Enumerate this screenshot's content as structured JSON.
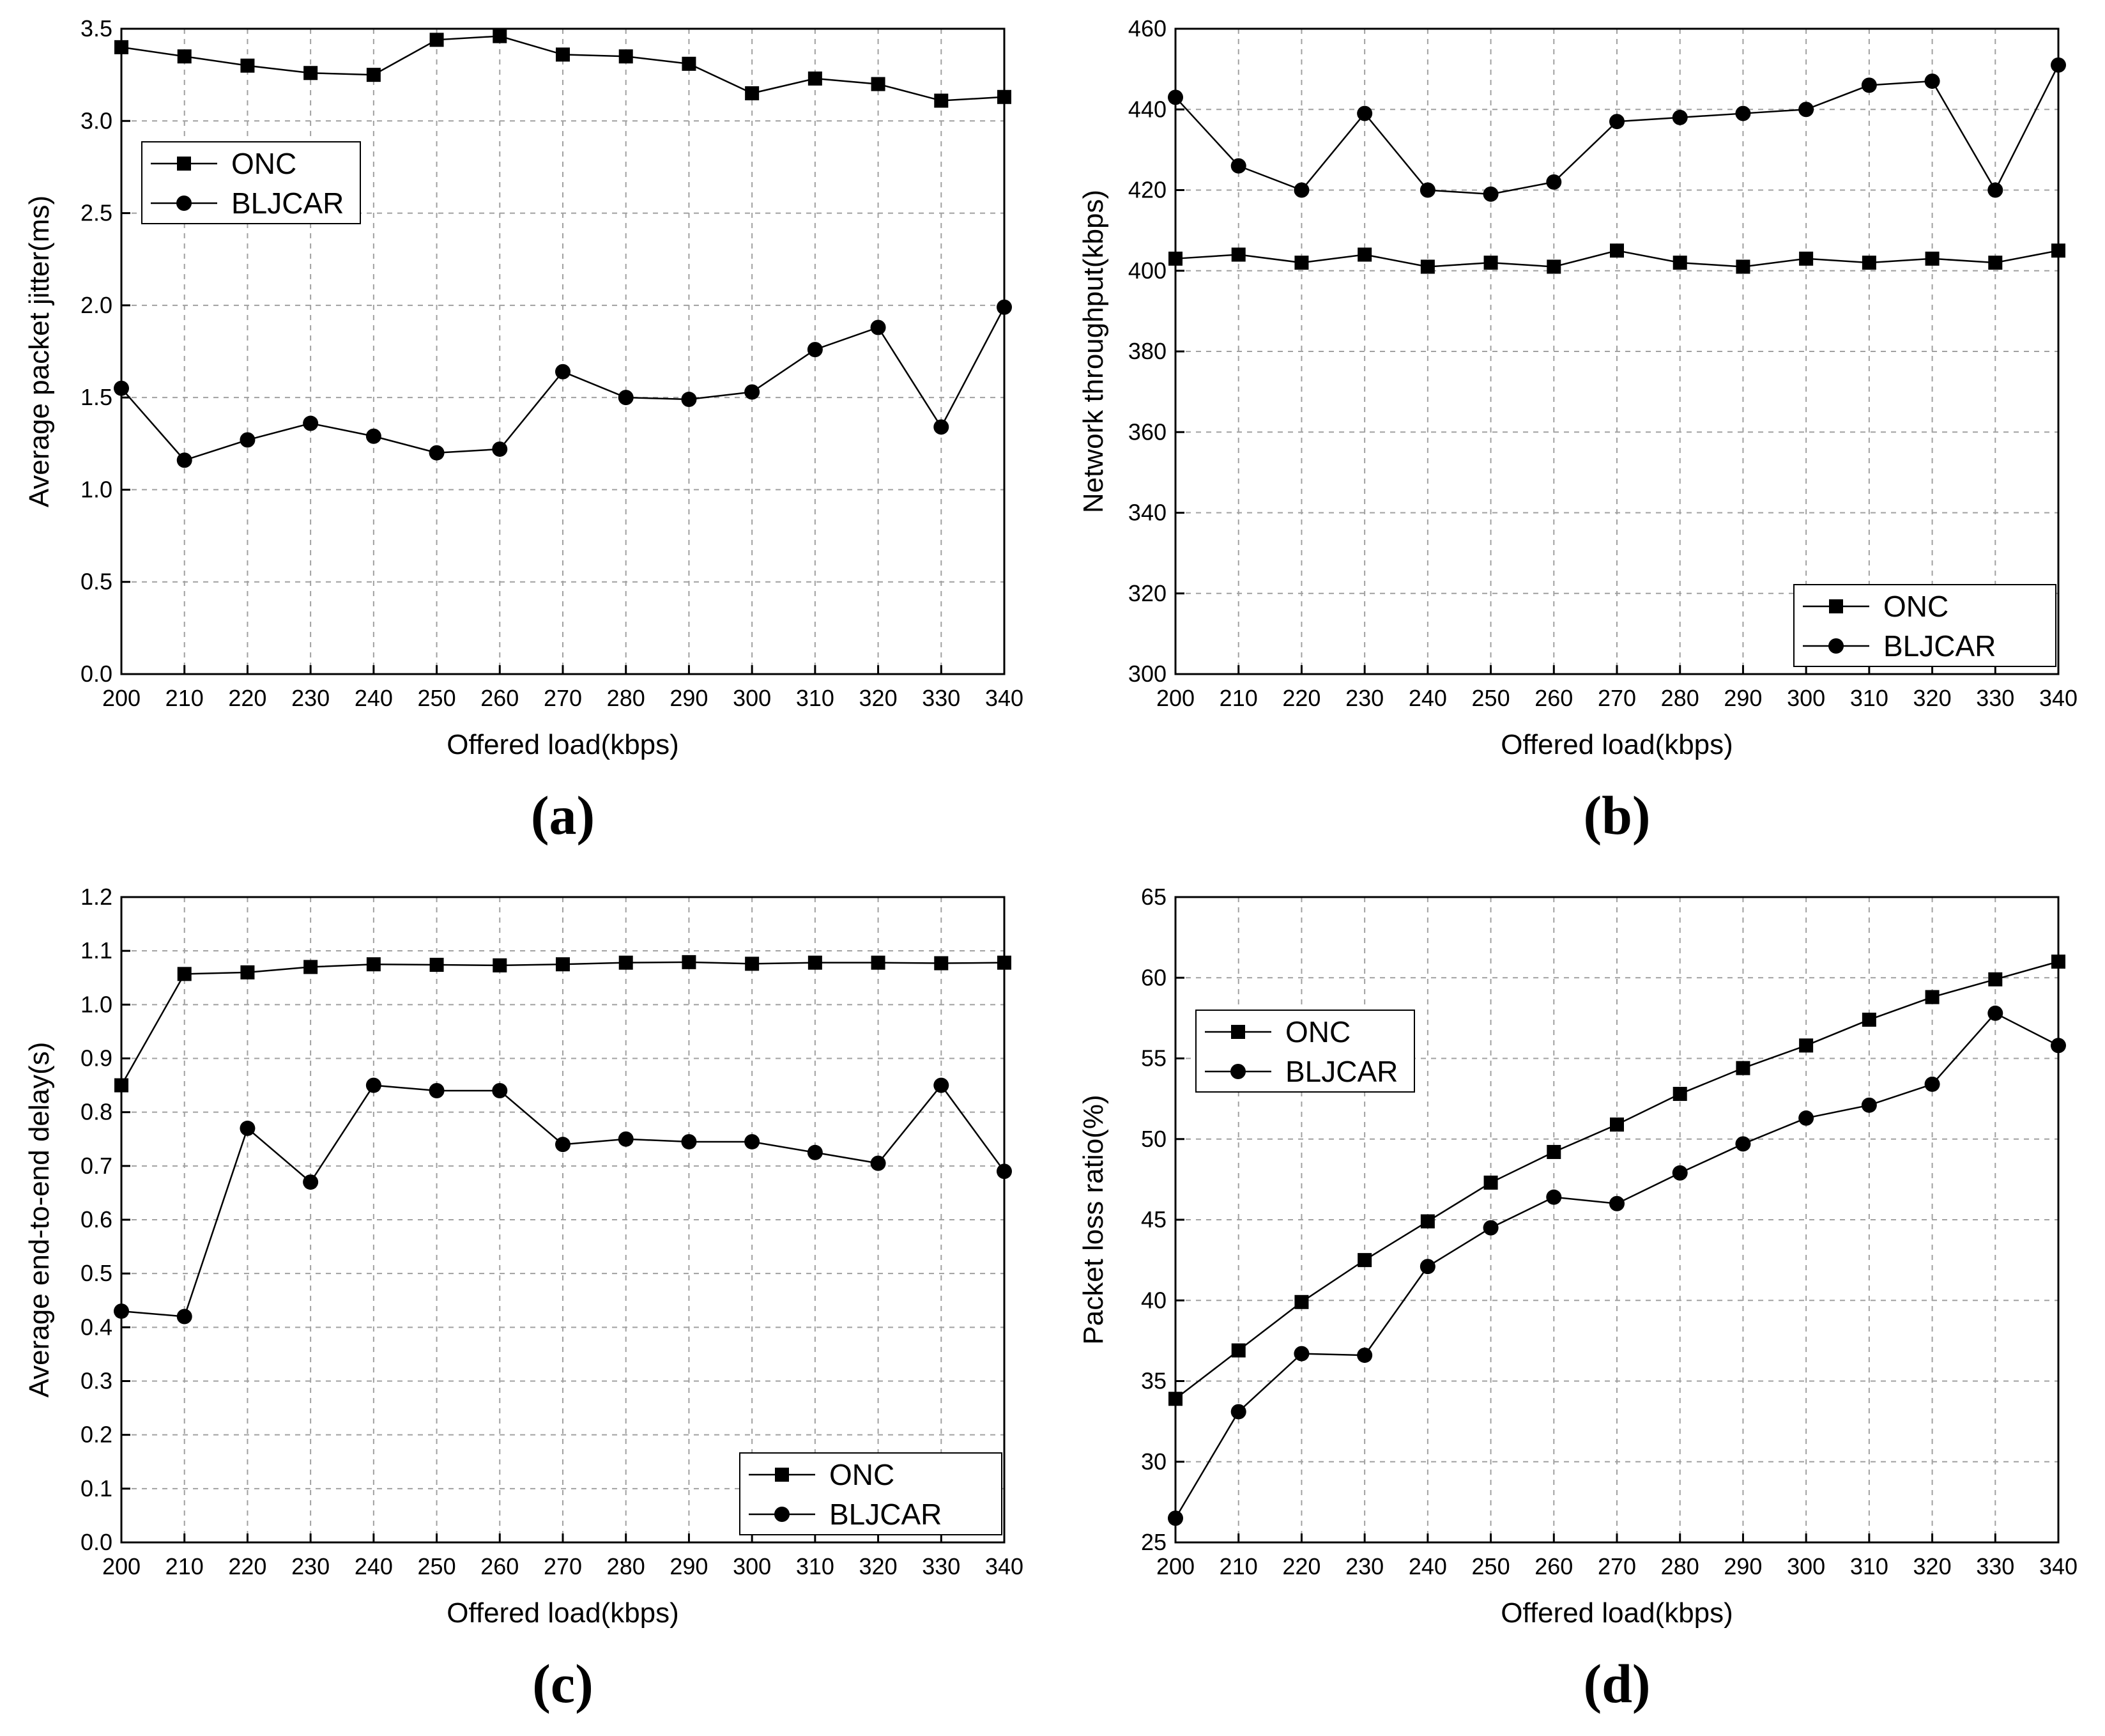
{
  "chart_data": [
    {
      "id": "a",
      "type": "line",
      "panel_label": "(a)",
      "xlabel": "Offered load(kbps)",
      "ylabel": "Average packet jitter(ms)",
      "x": [
        200,
        210,
        220,
        230,
        240,
        250,
        260,
        270,
        280,
        290,
        300,
        310,
        320,
        330,
        340
      ],
      "xlim": [
        200,
        340
      ],
      "ylim": [
        0,
        3.5
      ],
      "xticks": [
        "200",
        "210",
        "220",
        "230",
        "240",
        "250",
        "260",
        "270",
        "280",
        "290",
        "300",
        "310",
        "320",
        "330",
        "340"
      ],
      "yticks": [
        "0.0",
        "0.5",
        "1.0",
        "1.5",
        "2.0",
        "2.5",
        "3.0",
        "3.5"
      ],
      "grid": true,
      "legend_position": "upper-left",
      "series": [
        {
          "name": "ONC",
          "marker": "square",
          "values": [
            3.4,
            3.35,
            3.3,
            3.26,
            3.25,
            3.44,
            3.46,
            3.36,
            3.35,
            3.31,
            3.15,
            3.23,
            3.2,
            3.11,
            3.13
          ]
        },
        {
          "name": "BLJCAR",
          "marker": "circle",
          "values": [
            1.55,
            1.16,
            1.27,
            1.36,
            1.29,
            1.2,
            1.22,
            1.64,
            1.5,
            1.49,
            1.53,
            1.76,
            1.88,
            1.34,
            1.99
          ]
        }
      ]
    },
    {
      "id": "b",
      "type": "line",
      "panel_label": "(b)",
      "xlabel": "Offered load(kbps)",
      "ylabel": "Network throughput(kbps)",
      "x": [
        200,
        210,
        220,
        230,
        240,
        250,
        260,
        270,
        280,
        290,
        300,
        310,
        320,
        330,
        340
      ],
      "xlim": [
        200,
        340
      ],
      "ylim": [
        300,
        460
      ],
      "xticks": [
        "200",
        "210",
        "220",
        "230",
        "240",
        "250",
        "260",
        "270",
        "280",
        "290",
        "300",
        "310",
        "320",
        "330",
        "340"
      ],
      "yticks": [
        "300",
        "320",
        "340",
        "360",
        "380",
        "400",
        "420",
        "440",
        "460"
      ],
      "grid": true,
      "legend_position": "lower-right",
      "series": [
        {
          "name": "ONC",
          "marker": "square",
          "values": [
            403,
            404,
            402,
            404,
            401,
            402,
            401,
            405,
            402,
            401,
            403,
            402,
            403,
            402,
            405
          ]
        },
        {
          "name": "BLJCAR",
          "marker": "circle",
          "values": [
            443,
            426,
            420,
            439,
            420,
            419,
            422,
            437,
            438,
            439,
            440,
            446,
            447,
            420,
            451
          ]
        }
      ]
    },
    {
      "id": "c",
      "type": "line",
      "panel_label": "(c)",
      "xlabel": "Offered load(kbps)",
      "ylabel": "Average end-to-end delay(s)",
      "x": [
        200,
        210,
        220,
        230,
        240,
        250,
        260,
        270,
        280,
        290,
        300,
        310,
        320,
        330,
        340
      ],
      "xlim": [
        200,
        340
      ],
      "ylim": [
        0,
        1.2
      ],
      "xticks": [
        "200",
        "210",
        "220",
        "230",
        "240",
        "250",
        "260",
        "270",
        "280",
        "290",
        "300",
        "310",
        "320",
        "330",
        "340"
      ],
      "yticks": [
        "0.0",
        "0.1",
        "0.2",
        "0.3",
        "0.4",
        "0.5",
        "0.6",
        "0.7",
        "0.8",
        "0.9",
        "1.0",
        "1.1",
        "1.2"
      ],
      "grid": true,
      "legend_position": "lower-right",
      "series": [
        {
          "name": "ONC",
          "marker": "square",
          "values": [
            0.85,
            1.057,
            1.06,
            1.07,
            1.075,
            1.074,
            1.073,
            1.075,
            1.078,
            1.079,
            1.076,
            1.078,
            1.078,
            1.077,
            1.078
          ]
        },
        {
          "name": "BLJCAR",
          "marker": "circle",
          "values": [
            0.43,
            0.42,
            0.77,
            0.67,
            0.85,
            0.84,
            0.84,
            0.74,
            0.75,
            0.745,
            0.745,
            0.725,
            0.705,
            0.85,
            0.69
          ]
        }
      ]
    },
    {
      "id": "d",
      "type": "line",
      "panel_label": "(d)",
      "xlabel": "Offered load(kbps)",
      "ylabel": "Packet loss ratio(%)",
      "x": [
        200,
        210,
        220,
        230,
        240,
        250,
        260,
        270,
        280,
        290,
        300,
        310,
        320,
        330,
        340
      ],
      "xlim": [
        200,
        340
      ],
      "ylim": [
        25,
        65
      ],
      "xticks": [
        "200",
        "210",
        "220",
        "230",
        "240",
        "250",
        "260",
        "270",
        "280",
        "290",
        "300",
        "310",
        "320",
        "330",
        "340"
      ],
      "yticks": [
        "25",
        "30",
        "35",
        "40",
        "45",
        "50",
        "55",
        "60",
        "65"
      ],
      "grid": true,
      "legend_position": "upper-left",
      "series": [
        {
          "name": "ONC",
          "marker": "square",
          "values": [
            33.9,
            36.9,
            39.9,
            42.5,
            44.9,
            47.3,
            49.2,
            50.9,
            52.8,
            54.4,
            55.8,
            57.4,
            58.8,
            59.9,
            61.0
          ]
        },
        {
          "name": "BLJCAR",
          "marker": "circle",
          "values": [
            26.5,
            33.1,
            36.7,
            36.6,
            42.1,
            44.5,
            46.4,
            46.0,
            47.9,
            49.7,
            51.3,
            52.1,
            53.4,
            57.8,
            55.8
          ]
        }
      ]
    }
  ]
}
